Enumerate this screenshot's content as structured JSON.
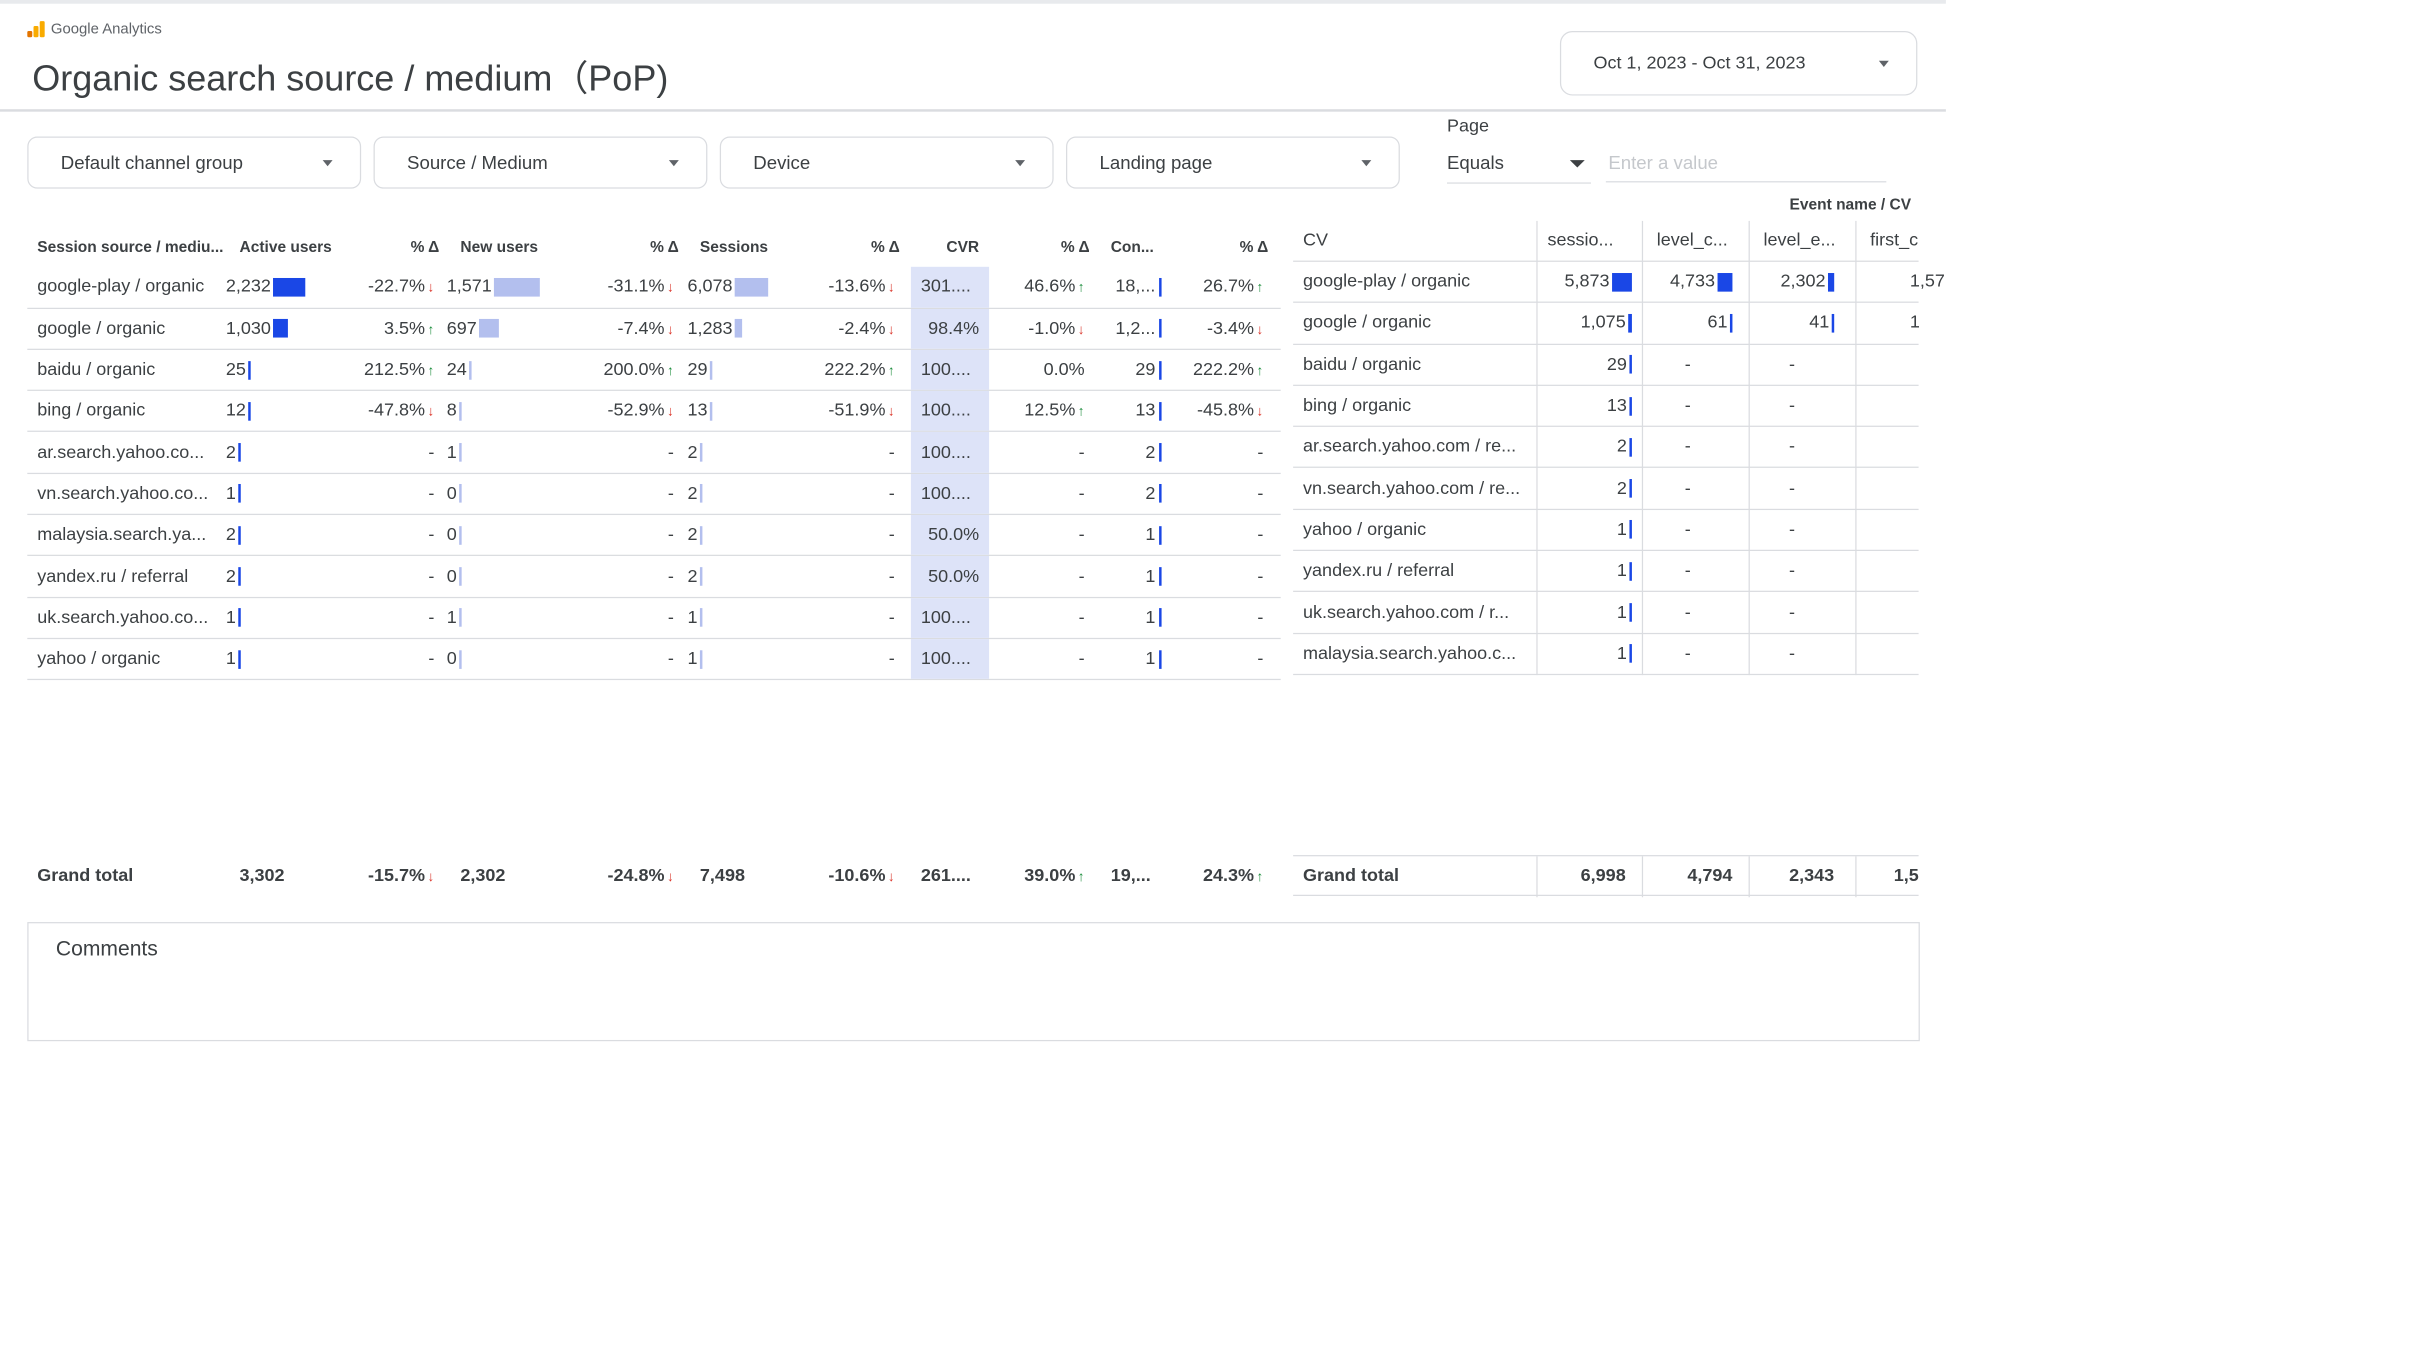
{
  "brand": "Google Analytics",
  "title": "Organic search source / medium（PoP)",
  "date_range": "Oct 1, 2023 - Oct 31, 2023",
  "filters": [
    "Default channel group",
    "Source / Medium",
    "Device",
    "Landing page"
  ],
  "page_filter": {
    "label": "Page",
    "operator": "Equals",
    "placeholder": "Enter a value"
  },
  "colors": {
    "bar_dark": "#1a47e6",
    "bar_light": "#b3bfee",
    "highlight": "#dde3f8",
    "up": "#1e8e3e",
    "down": "#d93025"
  },
  "main_table": {
    "headers": [
      "Session source / mediu...",
      "Active users",
      "% Δ",
      "New users",
      "% Δ",
      "Sessions",
      "% Δ",
      "CVR",
      "% Δ",
      "Con...",
      "% Δ"
    ],
    "rows": [
      {
        "source": "google-play / organic",
        "au": "2,232",
        "au_bar": 1.0,
        "au_d": "-22.7%",
        "au_t": "down",
        "nu": "1,571",
        "nu_bar": 1.0,
        "nu_d": "-31.1%",
        "nu_t": "down",
        "s": "6,078",
        "s_bar": 1.0,
        "s_d": "-13.6%",
        "s_t": "down",
        "cvr": "301....",
        "cvr_d": "46.6%",
        "cvr_t": "up",
        "con": "18,...",
        "con_d": "26.7%",
        "con_t": "up"
      },
      {
        "source": "google / organic",
        "au": "1,030",
        "au_bar": 0.46,
        "au_d": "3.5%",
        "au_t": "up",
        "nu": "697",
        "nu_bar": 0.44,
        "nu_d": "-7.4%",
        "nu_t": "down",
        "s": "1,283",
        "s_bar": 0.21,
        "s_d": "-2.4%",
        "s_t": "down",
        "cvr": "98.4%",
        "cvr_d": "-1.0%",
        "cvr_t": "down",
        "con": "1,2...",
        "con_d": "-3.4%",
        "con_t": "down"
      },
      {
        "source": "baidu / organic",
        "au": "25",
        "au_bar": 0.01,
        "au_d": "212.5%",
        "au_t": "up",
        "nu": "24",
        "nu_bar": 0.02,
        "nu_d": "200.0%",
        "nu_t": "up",
        "s": "29",
        "s_bar": 0.005,
        "s_d": "222.2%",
        "s_t": "up",
        "cvr": "100....",
        "cvr_d": "0.0%",
        "cvr_t": "",
        "con": "29",
        "con_d": "222.2%",
        "con_t": "up"
      },
      {
        "source": "bing / organic",
        "au": "12",
        "au_bar": 0.005,
        "au_d": "-47.8%",
        "au_t": "down",
        "nu": "8",
        "nu_bar": 0.005,
        "nu_d": "-52.9%",
        "nu_t": "down",
        "s": "13",
        "s_bar": 0.002,
        "s_d": "-51.9%",
        "s_t": "down",
        "cvr": "100....",
        "cvr_d": "12.5%",
        "cvr_t": "up",
        "con": "13",
        "con_d": "-45.8%",
        "con_t": "down"
      },
      {
        "source": "ar.search.yahoo.co...",
        "au": "2",
        "au_bar": 0.001,
        "au_d": "-",
        "au_t": "",
        "nu": "1",
        "nu_bar": 0.001,
        "nu_d": "-",
        "nu_t": "",
        "s": "2",
        "s_bar": 0.001,
        "s_d": "-",
        "s_t": "",
        "cvr": "100....",
        "cvr_d": "-",
        "cvr_t": "",
        "con": "2",
        "con_d": "-",
        "con_t": ""
      },
      {
        "source": "vn.search.yahoo.co...",
        "au": "1",
        "au_bar": 0.001,
        "au_d": "-",
        "au_t": "",
        "nu": "0",
        "nu_bar": 0.001,
        "nu_d": "-",
        "nu_t": "",
        "s": "2",
        "s_bar": 0.001,
        "s_d": "-",
        "s_t": "",
        "cvr": "100....",
        "cvr_d": "-",
        "cvr_t": "",
        "con": "2",
        "con_d": "-",
        "con_t": ""
      },
      {
        "source": "malaysia.search.ya...",
        "au": "2",
        "au_bar": 0.001,
        "au_d": "-",
        "au_t": "",
        "nu": "0",
        "nu_bar": 0.001,
        "nu_d": "-",
        "nu_t": "",
        "s": "2",
        "s_bar": 0.001,
        "s_d": "-",
        "s_t": "",
        "cvr": "50.0%",
        "cvr_d": "-",
        "cvr_t": "",
        "con": "1",
        "con_d": "-",
        "con_t": ""
      },
      {
        "source": "yandex.ru / referral",
        "au": "2",
        "au_bar": 0.001,
        "au_d": "-",
        "au_t": "",
        "nu": "0",
        "nu_bar": 0.001,
        "nu_d": "-",
        "nu_t": "",
        "s": "2",
        "s_bar": 0.001,
        "s_d": "-",
        "s_t": "",
        "cvr": "50.0%",
        "cvr_d": "-",
        "cvr_t": "",
        "con": "1",
        "con_d": "-",
        "con_t": ""
      },
      {
        "source": "uk.search.yahoo.co...",
        "au": "1",
        "au_bar": 0.001,
        "au_d": "-",
        "au_t": "",
        "nu": "1",
        "nu_bar": 0.001,
        "nu_d": "-",
        "nu_t": "",
        "s": "1",
        "s_bar": 0.001,
        "s_d": "-",
        "s_t": "",
        "cvr": "100....",
        "cvr_d": "-",
        "cvr_t": "",
        "con": "1",
        "con_d": "-",
        "con_t": ""
      },
      {
        "source": "yahoo / organic",
        "au": "1",
        "au_bar": 0.001,
        "au_d": "-",
        "au_t": "",
        "nu": "0",
        "nu_bar": 0.001,
        "nu_d": "-",
        "nu_t": "",
        "s": "1",
        "s_bar": 0.001,
        "s_d": "-",
        "s_t": "",
        "cvr": "100....",
        "cvr_d": "-",
        "cvr_t": "",
        "con": "1",
        "con_d": "-",
        "con_t": ""
      }
    ],
    "grand_total": {
      "label": "Grand total",
      "au": "3,302",
      "au_d": "-15.7%",
      "au_t": "down",
      "nu": "2,302",
      "nu_d": "-24.8%",
      "nu_t": "down",
      "s": "7,498",
      "s_d": "-10.6%",
      "s_t": "down",
      "cvr": "261....",
      "cvr_d": "39.0%",
      "cvr_t": "up",
      "con": "19,...",
      "con_d": "24.3%",
      "con_t": "up"
    }
  },
  "event_table": {
    "group_label": "Event name / CV",
    "headers": [
      "CV",
      "sessio...",
      "level_c...",
      "level_e...",
      "first_c"
    ],
    "rows": [
      {
        "cv": "google-play / organic",
        "a": "5,873",
        "a_bar": 1.0,
        "b": "4,733",
        "b_bar": 1.0,
        "c": "2,302",
        "c_bar": 1.0,
        "d": "1,57"
      },
      {
        "cv": "google / organic",
        "a": "1,075",
        "a_bar": 0.18,
        "b": "61",
        "b_bar": 0.013,
        "c": "41",
        "c_bar": 0.018,
        "d": "1"
      },
      {
        "cv": "baidu / organic",
        "a": "29",
        "a_bar": 0.005,
        "b": "-",
        "b_bar": 0,
        "c": "-",
        "c_bar": 0,
        "d": ""
      },
      {
        "cv": "bing / organic",
        "a": "13",
        "a_bar": 0.002,
        "b": "-",
        "b_bar": 0,
        "c": "-",
        "c_bar": 0,
        "d": ""
      },
      {
        "cv": "ar.search.yahoo.com / re...",
        "a": "2",
        "a_bar": 0.001,
        "b": "-",
        "b_bar": 0,
        "c": "-",
        "c_bar": 0,
        "d": ""
      },
      {
        "cv": "vn.search.yahoo.com / re...",
        "a": "2",
        "a_bar": 0.001,
        "b": "-",
        "b_bar": 0,
        "c": "-",
        "c_bar": 0,
        "d": ""
      },
      {
        "cv": "yahoo / organic",
        "a": "1",
        "a_bar": 0.001,
        "b": "-",
        "b_bar": 0,
        "c": "-",
        "c_bar": 0,
        "d": ""
      },
      {
        "cv": "yandex.ru / referral",
        "a": "1",
        "a_bar": 0.001,
        "b": "-",
        "b_bar": 0,
        "c": "-",
        "c_bar": 0,
        "d": ""
      },
      {
        "cv": "uk.search.yahoo.com / r...",
        "a": "1",
        "a_bar": 0.001,
        "b": "-",
        "b_bar": 0,
        "c": "-",
        "c_bar": 0,
        "d": ""
      },
      {
        "cv": "malaysia.search.yahoo.c...",
        "a": "1",
        "a_bar": 0.001,
        "b": "-",
        "b_bar": 0,
        "c": "-",
        "c_bar": 0,
        "d": ""
      }
    ],
    "grand_total": {
      "label": "Grand total",
      "a": "6,998",
      "b": "4,794",
      "c": "2,343",
      "d": "1,5"
    }
  },
  "comments_label": "Comments"
}
